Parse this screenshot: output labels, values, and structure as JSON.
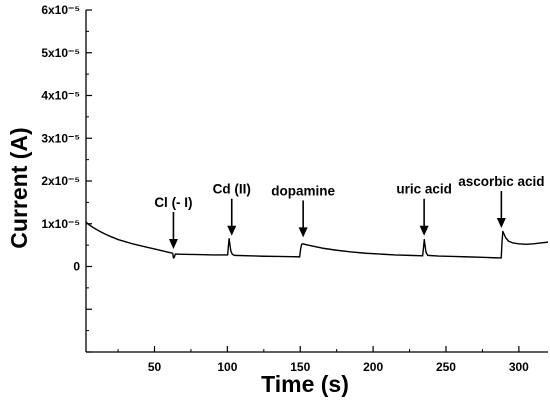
{
  "chart_data": {
    "type": "line",
    "xlabel": "Time (s)",
    "ylabel": "Current (A)",
    "xlim": [
      3,
      320
    ],
    "ylim": [
      -2e-05,
      6e-05
    ],
    "xticks": {
      "values": [
        50,
        100,
        150,
        200,
        250,
        300
      ],
      "labels": [
        "50",
        "100",
        "150",
        "200",
        "250",
        "300"
      ]
    },
    "yticks": {
      "values": [
        6e-05,
        5e-05,
        4e-05,
        3e-05,
        2e-05,
        1e-05,
        0,
        -1e-05,
        -2e-05
      ],
      "labels": [
        "6x10⁻⁵",
        "5x10⁻⁵",
        "4x10⁻⁵",
        "3x10⁻⁵",
        "2x10⁻⁵",
        "1x10⁻⁵",
        "0",
        "",
        ""
      ]
    },
    "minor_ticks": {
      "x_step": 25,
      "y_step": 5e-06
    },
    "grid": false,
    "legend": false,
    "axis_color": "#000000",
    "series": [
      {
        "color": "#000000",
        "x": [
          3,
          5,
          8,
          12,
          16,
          20,
          25,
          30,
          35,
          40,
          45,
          50,
          55,
          60,
          62.5,
          63,
          63.6,
          64.3,
          70,
          80,
          90,
          100.2,
          100.7,
          101.2,
          101.7,
          102.4,
          103.5,
          105,
          115,
          125,
          135,
          145,
          149.6,
          150.3,
          151,
          152,
          154,
          158,
          165,
          175,
          185,
          195,
          205,
          215,
          225,
          234,
          234.6,
          235.1,
          235.6,
          236.3,
          237.5,
          245,
          255,
          265,
          275,
          283,
          287.9,
          288.4,
          289,
          289.8,
          291,
          293,
          296,
          300,
          305,
          310,
          315,
          320
        ],
        "y": [
          1.04e-05,
          9.8e-06,
          9.1e-06,
          8.3e-06,
          7.6e-06,
          7e-06,
          6.3e-06,
          5.8e-06,
          5.3e-06,
          4.9e-06,
          4.5e-06,
          4.1e-06,
          3.7e-06,
          3.3e-06,
          3.1e-06,
          2e-06,
          2.2e-06,
          2.9e-06,
          2.85e-06,
          2.8e-06,
          2.7e-06,
          2.7e-06,
          4.8e-06,
          6.5e-06,
          5.2e-06,
          3.6e-06,
          2.8e-06,
          2.6e-06,
          2.5e-06,
          2.4e-06,
          2.35e-06,
          2.3e-06,
          2.25e-06,
          4.2e-06,
          5.2e-06,
          5.3e-06,
          5.1e-06,
          4.8e-06,
          4.3e-06,
          3.8e-06,
          3.4e-06,
          3.1e-06,
          2.9e-06,
          2.7e-06,
          2.6e-06,
          2.5e-06,
          4.5e-06,
          6.3e-06,
          5e-06,
          3.3e-06,
          2.6e-06,
          2.45e-06,
          2.35e-06,
          2.25e-06,
          2.15e-06,
          2.05e-06,
          2e-06,
          5.5e-06,
          8.2e-06,
          7.6e-06,
          6.7e-06,
          5.9e-06,
          5.5e-06,
          5.3e-06,
          5.2e-06,
          5.3e-06,
          5.5e-06,
          5.7e-06
        ]
      }
    ],
    "annotations": [
      {
        "label": "Cl (- I)",
        "x": 63,
        "y": 4.1e-06
      },
      {
        "label": "Cd (II)",
        "x": 103,
        "y": 7.2e-06
      },
      {
        "label": "dopamine",
        "x": 152,
        "y": 6.8e-06
      },
      {
        "label": "uric acid",
        "x": 235,
        "y": 7.2e-06
      },
      {
        "label": "ascorbic acid",
        "x": 288,
        "y": 9e-06
      }
    ]
  }
}
